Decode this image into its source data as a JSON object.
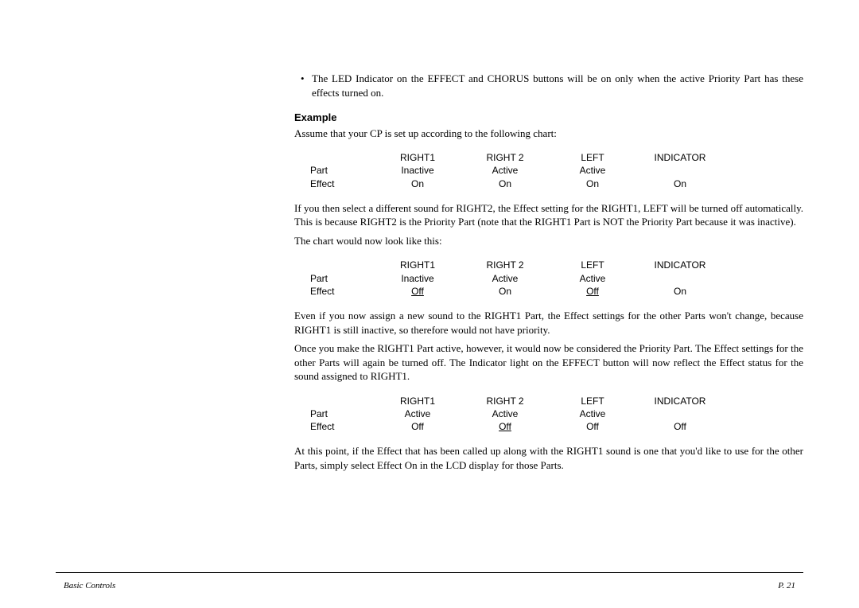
{
  "bullet": "The LED Indicator on the EFFECT and CHORUS buttons will be on only when the active Priority Part has these effects turned on.",
  "example": {
    "heading": "Example",
    "intro": "Assume that your CP is set up according to the following chart:"
  },
  "chartHeaders": {
    "blank": "",
    "c1": "RIGHT1",
    "c2": "RIGHT 2",
    "c3": "LEFT",
    "c4": "INDICATOR"
  },
  "chart1": {
    "partLabel": "Part",
    "part": {
      "c1": "Inactive",
      "c2": "Active",
      "c3": "Active",
      "c4": ""
    },
    "effectLabel": "Effect",
    "effect": {
      "c1": "On",
      "c2": "On",
      "c3": "On",
      "c4": "On"
    },
    "underline": {
      "c1": false,
      "c2": false,
      "c3": false,
      "c4": false
    }
  },
  "para1": "If you then select a different sound for RIGHT2, the Effect setting for the RIGHT1, LEFT will be turned off automatically.  This is because RIGHT2 is the Priority Part (note that the RIGHT1 Part is NOT the Priority Part because it was inactive).",
  "para1b": "The chart would now look like this:",
  "chart2": {
    "partLabel": "Part",
    "part": {
      "c1": "Inactive",
      "c2": "Active",
      "c3": "Active",
      "c4": ""
    },
    "effectLabel": "Effect",
    "effect": {
      "c1": "Off",
      "c2": "On",
      "c3": "Off",
      "c4": "On"
    },
    "underline": {
      "c1": true,
      "c2": false,
      "c3": true,
      "c4": false
    }
  },
  "para2": "Even if you now assign a new sound to the RIGHT1 Part, the Effect settings for the other Parts won't change, because RIGHT1 is still inactive, so therefore would not have priority.",
  "para3": "Once you make the RIGHT1 Part active, however, it would now be considered the Priority Part.  The Effect settings for the other Parts will again be turned off.  The Indicator light on the EFFECT button will now reflect the Effect status for the sound assigned to RIGHT1.",
  "chart3": {
    "partLabel": "Part",
    "part": {
      "c1": "Active",
      "c2": "Active",
      "c3": "Active",
      "c4": ""
    },
    "effectLabel": "Effect",
    "effect": {
      "c1": "Off",
      "c2": "Off",
      "c3": "Off",
      "c4": "Off"
    },
    "underline": {
      "c1": false,
      "c2": true,
      "c3": false,
      "c4": false
    }
  },
  "para4": "At this point, if the Effect that has been called up along with the RIGHT1 sound is one that you'd like to use for the other Parts, simply select Effect On in the LCD display for those Parts.",
  "footer": {
    "left": "Basic Controls",
    "right": "P. 21"
  }
}
